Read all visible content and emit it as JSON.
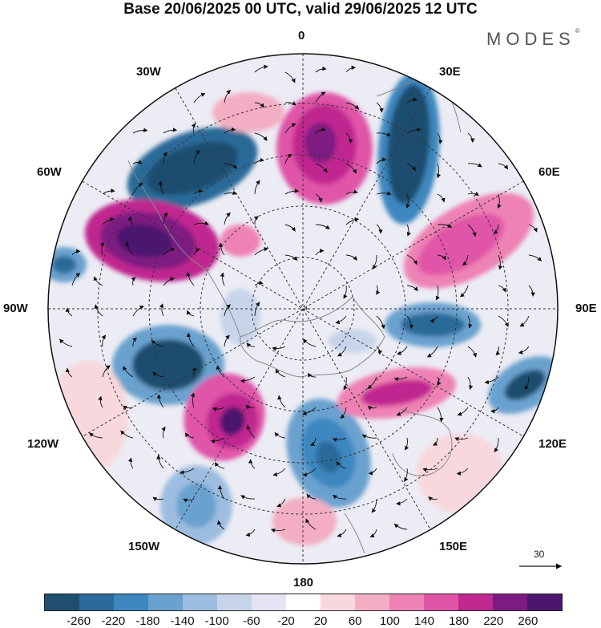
{
  "title": "Base 20/06/2025 00 UTC, valid 29/06/2025 12 UTC",
  "logo": "MODES",
  "logo_mark": "©",
  "longitude_labels": {
    "lon_0": "0",
    "lon_30e": "30E",
    "lon_60e": "60E",
    "lon_90e": "90E",
    "lon_120e": "120E",
    "lon_150e": "150E",
    "lon_180": "180",
    "lon_150w": "150W",
    "lon_120w": "120W",
    "lon_90w": "90W",
    "lon_60w": "60W",
    "lon_30w": "30W"
  },
  "reference_vector_label": "30",
  "colorbar": {
    "colors": [
      "#1f4e6e",
      "#2a6b99",
      "#3d87c0",
      "#6aa2cf",
      "#9dbde0",
      "#c8d4ea",
      "#e4e4f2",
      "#ffffff",
      "#f8d8dc",
      "#f3aec3",
      "#ee82b4",
      "#e055a8",
      "#c0278f",
      "#7e1b82",
      "#4b1670"
    ],
    "tick_labels": [
      "-260",
      "-220",
      "-180",
      "-140",
      "-100",
      "-60",
      "-20",
      "20",
      "60",
      "100",
      "140",
      "180",
      "220",
      "260"
    ]
  },
  "colors": {
    "coast": "#888888",
    "grid": "#333333",
    "arrow": "#111111"
  }
}
